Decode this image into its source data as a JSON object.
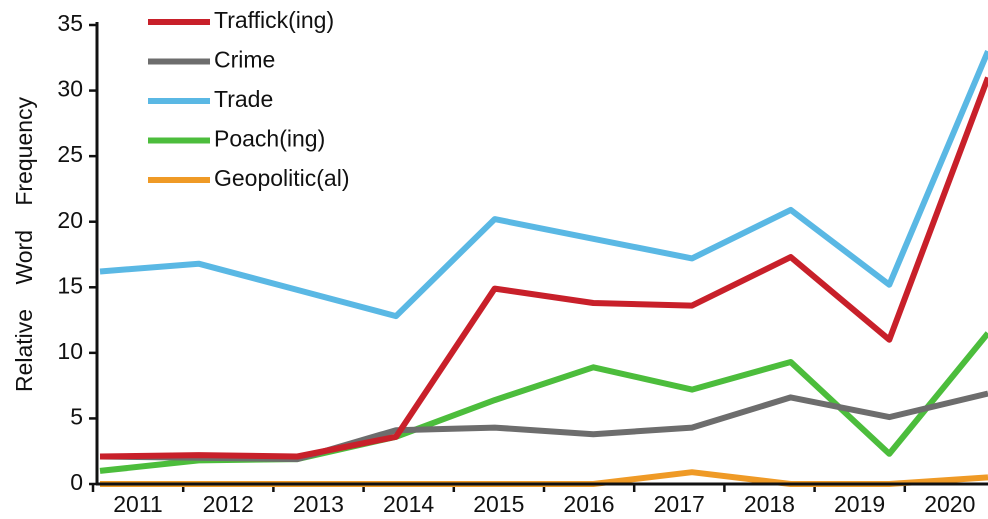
{
  "chart_data": {
    "type": "line",
    "y_label": "Relative Word Frequency",
    "categories": [
      "2011",
      "2012",
      "2013",
      "2014",
      "2015",
      "2016",
      "2017",
      "2018",
      "2019",
      "2020"
    ],
    "ylim": [
      0,
      35
    ],
    "yticks": [
      0,
      5,
      10,
      15,
      20,
      25,
      30,
      35
    ],
    "legend": "upper left",
    "series": [
      {
        "name": "Traffick(ing)",
        "color": "#c8202a",
        "values": [
          2.1,
          2.2,
          2.1,
          3.6,
          14.9,
          13.8,
          13.6,
          17.3,
          11.0,
          31.0
        ]
      },
      {
        "name": "Crime",
        "color": "#6d6d6d",
        "values": [
          2.1,
          2.0,
          1.9,
          4.1,
          4.3,
          3.8,
          4.3,
          6.6,
          5.1,
          6.9
        ]
      },
      {
        "name": "Trade",
        "color": "#5ab8e4",
        "values": [
          16.2,
          16.8,
          14.8,
          12.8,
          20.2,
          18.7,
          17.2,
          20.9,
          15.2,
          33.0
        ]
      },
      {
        "name": "Poach(ing)",
        "color": "#4cbd3c",
        "values": [
          1.0,
          1.8,
          1.9,
          3.6,
          6.4,
          8.9,
          7.2,
          9.3,
          2.3,
          11.5
        ]
      },
      {
        "name": "Geopolitic(al)",
        "color": "#ef9a26",
        "values": [
          0,
          0,
          0,
          0,
          0,
          0,
          0.9,
          0,
          0,
          0.5
        ]
      }
    ]
  }
}
